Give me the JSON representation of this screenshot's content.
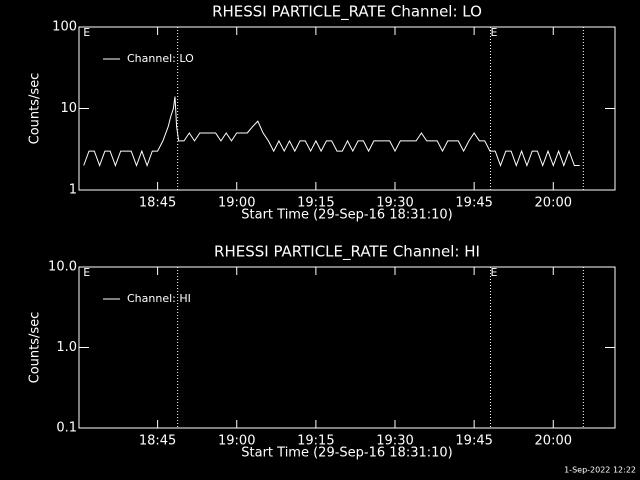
{
  "chart_data": [
    {
      "type": "line",
      "title": "RHESSI PARTICLE_RATE Channel: LO",
      "xlabel": "Start Time (29-Sep-16 18:31:10)",
      "ylabel": "Counts/sec",
      "log_y": true,
      "ylim": [
        1,
        100
      ],
      "yticks": [
        1,
        10,
        100
      ],
      "xlim": [
        30.1,
        131.7
      ],
      "xticks": [
        {
          "value": 45,
          "label": "18:45"
        },
        {
          "value": 60,
          "label": "19:00"
        },
        {
          "value": 75,
          "label": "19:15"
        },
        {
          "value": 90,
          "label": "19:30"
        },
        {
          "value": 105,
          "label": "19:45"
        },
        {
          "value": 120,
          "label": "20:00"
        }
      ],
      "markers": [
        48.8,
        108.1,
        125.7
      ],
      "annotations": [
        {
          "text": "E",
          "x": 30.9
        },
        {
          "text": "E",
          "x": 108.1
        }
      ],
      "legend": "upper left",
      "series": [
        {
          "name": "Channel: LO",
          "color": "#ffffff",
          "x": [
            31,
            32,
            33,
            34,
            35,
            36,
            37,
            38,
            39,
            40,
            41,
            42,
            43,
            44,
            45,
            46,
            47,
            47.5,
            48,
            48.3,
            48.6,
            49,
            50,
            51,
            52,
            53,
            54,
            55,
            56,
            57,
            58,
            59,
            60,
            61,
            62,
            63,
            64,
            65,
            66,
            67,
            68,
            69,
            70,
            71,
            72,
            73,
            74,
            75,
            76,
            77,
            78,
            79,
            80,
            81,
            82,
            83,
            84,
            85,
            86,
            87,
            88,
            89,
            90,
            91,
            92,
            93,
            94,
            95,
            96,
            97,
            98,
            99,
            100,
            101,
            102,
            103,
            104,
            105,
            106,
            107,
            108,
            109,
            110,
            111,
            112,
            113,
            114,
            115,
            116,
            117,
            118,
            119,
            120,
            121,
            122,
            123,
            124,
            125
          ],
          "values": [
            2,
            3,
            3,
            2,
            3,
            3,
            2,
            3,
            3,
            3,
            2,
            3,
            2,
            3,
            3,
            4,
            6,
            8,
            10,
            14,
            6,
            4,
            4,
            5,
            4,
            5,
            5,
            5,
            5,
            4,
            5,
            4,
            5,
            5,
            5,
            6,
            7,
            5,
            4,
            3,
            4,
            3,
            4,
            3,
            4,
            4,
            3,
            4,
            3,
            4,
            4,
            3,
            3,
            4,
            3,
            4,
            4,
            3,
            4,
            4,
            4,
            4,
            3,
            4,
            4,
            4,
            4,
            5,
            4,
            4,
            4,
            3,
            4,
            4,
            4,
            3,
            4,
            5,
            4,
            4,
            3,
            3,
            2,
            3,
            3,
            2,
            3,
            2,
            3,
            3,
            2,
            3,
            2,
            3,
            2,
            3,
            2,
            2
          ]
        }
      ]
    },
    {
      "type": "line",
      "title": "RHESSI PARTICLE_RATE Channel: HI",
      "xlabel": "Start Time (29-Sep-16 18:31:10)",
      "ylabel": "Counts/sec",
      "log_y": true,
      "ylim": [
        0.1,
        10
      ],
      "yticks": [
        0.1,
        {
          "value": 1,
          "label": "1.0"
        },
        {
          "value": 10,
          "label": "10.0"
        }
      ],
      "xlim": [
        30.1,
        131.7
      ],
      "xticks": [
        {
          "value": 45,
          "label": "18:45"
        },
        {
          "value": 60,
          "label": "19:00"
        },
        {
          "value": 75,
          "label": "19:15"
        },
        {
          "value": 90,
          "label": "19:30"
        },
        {
          "value": 105,
          "label": "19:45"
        },
        {
          "value": 120,
          "label": "20:00"
        }
      ],
      "markers": [
        48.8,
        108.1,
        125.7
      ],
      "annotations": [
        {
          "text": "E",
          "x": 30.9
        },
        {
          "text": "E",
          "x": 108.1
        }
      ],
      "legend": "upper left",
      "series": [
        {
          "name": "Channel: HI",
          "color": "#ffffff",
          "x": [],
          "values": []
        }
      ]
    }
  ],
  "footer": "1-Sep-2022 12:22"
}
